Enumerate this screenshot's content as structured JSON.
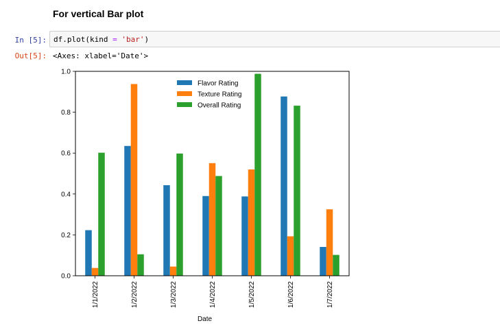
{
  "heading": "For vertical Bar plot",
  "cell": {
    "in_prompt": "In [5]:",
    "code": {
      "part1": "df.plot(kind ",
      "op": "=",
      "part2": " ",
      "str": "'bar'",
      "part3": ")"
    },
    "out_prompt": "Out[5]:",
    "output": "<Axes: xlabel='Date'>"
  },
  "colors": {
    "series": [
      "#1f77b4",
      "#ff7f0e",
      "#2ca02c"
    ]
  },
  "chart_data": {
    "type": "bar",
    "categories": [
      "1/1/2022",
      "1/2/2022",
      "1/3/2022",
      "1/4/2022",
      "1/5/2022",
      "1/6/2022",
      "1/7/2022"
    ],
    "series": [
      {
        "name": "Flavor Rating",
        "values": [
          0.223,
          0.635,
          0.443,
          0.39,
          0.388,
          0.877,
          0.141
        ]
      },
      {
        "name": "Texture Rating",
        "values": [
          0.038,
          0.938,
          0.045,
          0.551,
          0.52,
          0.193,
          0.325
        ]
      },
      {
        "name": "Overall Rating",
        "values": [
          0.602,
          0.105,
          0.598,
          0.488,
          0.988,
          0.832,
          0.102
        ]
      }
    ],
    "xlabel": "Date",
    "ylabel": "",
    "ylim": [
      0,
      1.0
    ],
    "yticks": [
      "0.0",
      "0.2",
      "0.4",
      "0.6",
      "0.8",
      "1.0"
    ],
    "grid": false,
    "legend_position": "top-center"
  }
}
